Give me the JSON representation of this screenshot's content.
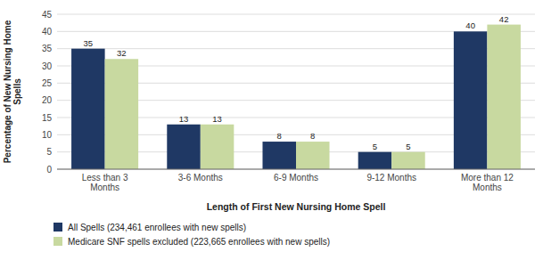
{
  "chart_data": {
    "type": "bar",
    "categories": [
      "Less than 3\nMonths",
      "3-6 Months",
      "6-9 Months",
      "9-12 Months",
      "More than 12\nMonths"
    ],
    "series": [
      {
        "name": "All Spells (234,461 enrollees with new spells)",
        "color": "#1F3864",
        "values": [
          35,
          13,
          8,
          5,
          40
        ]
      },
      {
        "name": "Medicare SNF spells excluded (223,665 enrollees with new spells)",
        "color": "#C8D9A0",
        "values": [
          32,
          13,
          8,
          5,
          42
        ]
      }
    ],
    "xlabel": "Length of First New Nursing Home Spell",
    "ylabel": "Percentage of New Nursing Home\nSpells",
    "ylim": [
      0,
      45
    ],
    "yticks": [
      0,
      5,
      10,
      15,
      20,
      25,
      30,
      35,
      40,
      45
    ],
    "grid": true,
    "data_labels": true,
    "legend": "lower left"
  }
}
